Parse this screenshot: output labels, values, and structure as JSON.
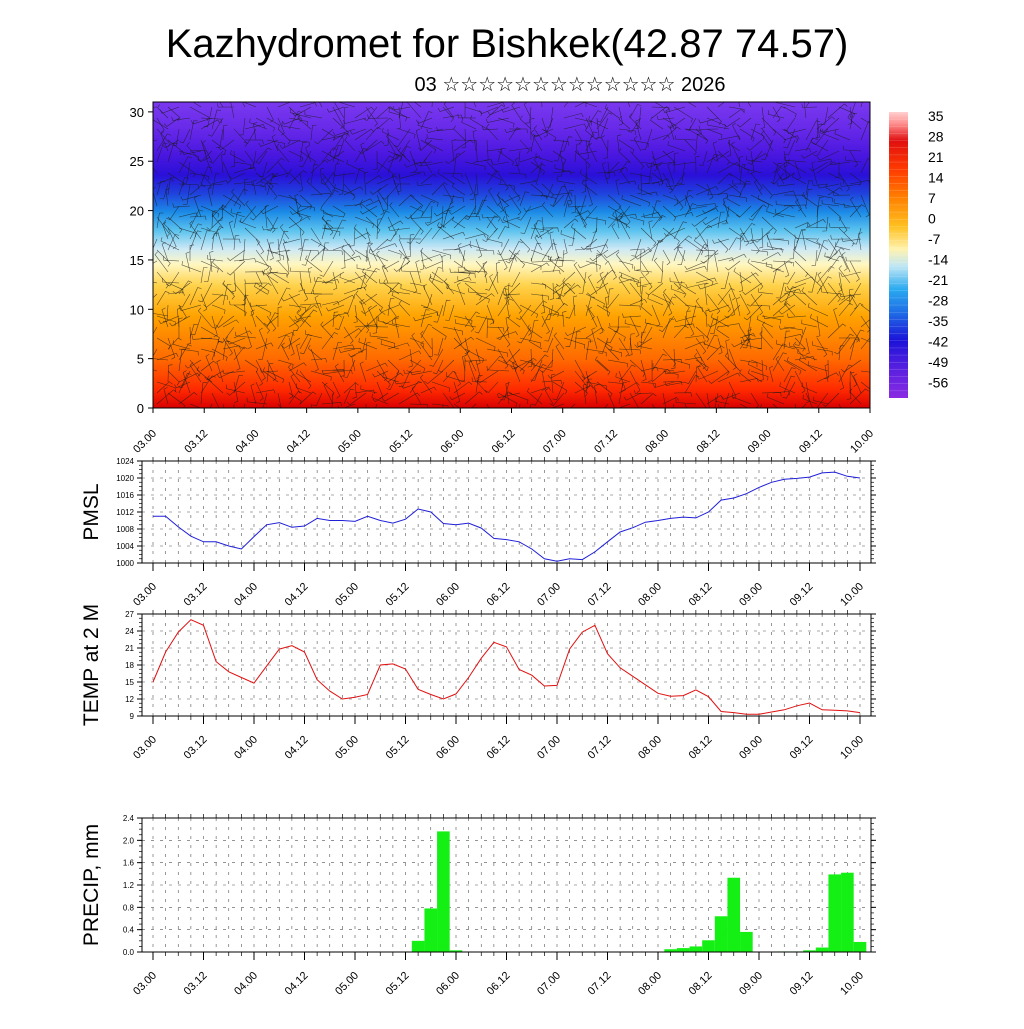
{
  "title": "Kazhydromet for Bishkek(42.87 74.57)",
  "subtitle": "03 ☆☆☆☆☆☆☆☆☆☆☆☆☆ 2026",
  "chart_data": [
    {
      "type": "heatmap",
      "name": "temperature-height-section",
      "x_ticks": [
        "03.00",
        "03.12",
        "04.00",
        "04.12",
        "05.00",
        "05.12",
        "06.00",
        "06.12",
        "07.00",
        "07.12",
        "08.00",
        "08.12",
        "09.00",
        "09.12",
        "10.00"
      ],
      "y_ticks": [
        "0",
        "5",
        "10",
        "15",
        "20",
        "25",
        "30"
      ],
      "ylim": [
        0,
        31
      ],
      "colorbar_labels": [
        "35",
        "28",
        "21",
        "14",
        "7",
        "0",
        "-7",
        "-14",
        "-21",
        "-28",
        "-35",
        "-42",
        "-49",
        "-56"
      ],
      "colorbar_range": [
        -63,
        42
      ],
      "wind_barbs": true
    },
    {
      "type": "line",
      "name": "pmsl",
      "ylabel": "PMSL",
      "ylim": [
        1000,
        1024
      ],
      "y_ticks": [
        "1000",
        "1004",
        "1008",
        "1012",
        "1016",
        "1020",
        "1024"
      ],
      "x_ticks": [
        "03.00",
        "03.12",
        "04.00",
        "04.12",
        "05.00",
        "05.12",
        "06.00",
        "06.12",
        "07.00",
        "07.12",
        "08.00",
        "08.12",
        "09.00",
        "09.12",
        "10.00"
      ],
      "color": "#1f1fd8",
      "x": [
        0,
        1,
        2,
        3,
        4,
        5,
        6,
        7,
        8,
        9,
        10,
        11,
        12,
        13,
        14,
        15,
        16,
        17,
        18,
        19,
        20,
        21,
        22,
        23,
        24,
        25,
        26,
        27,
        28,
        29,
        30,
        31,
        32,
        33,
        34,
        35,
        36,
        37,
        38,
        39,
        40,
        41,
        42,
        43,
        44,
        45,
        46,
        47,
        48,
        49,
        50,
        51,
        52,
        53,
        54,
        55,
        56
      ],
      "values": [
        1011,
        1011,
        1008.5,
        1006.3,
        1005,
        1005,
        1004,
        1003.3,
        1006.2,
        1009,
        1009.5,
        1008.4,
        1008.7,
        1010.5,
        1010,
        1010,
        1009.8,
        1011,
        1010,
        1009.4,
        1010.3,
        1012.7,
        1012,
        1009.3,
        1009,
        1009.4,
        1008.2,
        1005.8,
        1005.5,
        1005,
        1003.3,
        1001,
        1000.4,
        1001,
        1000.8,
        1002.6,
        1005,
        1007.3,
        1008.3,
        1009.6,
        1010,
        1010.5,
        1010.8,
        1010.6,
        1012,
        1014.8,
        1015.3,
        1016.3,
        1017.8,
        1019,
        1019.7,
        1019.9,
        1020.2,
        1021.2,
        1021.4,
        1020.4,
        1020
      ]
    },
    {
      "type": "line",
      "name": "temp-2m",
      "ylabel": "TEMP at 2 M",
      "ylim": [
        9,
        27
      ],
      "y_ticks": [
        "9",
        "12",
        "15",
        "18",
        "21",
        "24",
        "27"
      ],
      "x_ticks": [
        "03.00",
        "03.12",
        "04.00",
        "04.12",
        "05.00",
        "05.12",
        "06.00",
        "06.12",
        "07.00",
        "07.12",
        "08.00",
        "08.12",
        "09.00",
        "09.12",
        "10.00"
      ],
      "color": "#e01010",
      "x": [
        0,
        1,
        2,
        3,
        4,
        5,
        6,
        7,
        8,
        9,
        10,
        11,
        12,
        13,
        14,
        15,
        16,
        17,
        18,
        19,
        20,
        21,
        22,
        23,
        24,
        25,
        26,
        27,
        28,
        29,
        30,
        31,
        32,
        33,
        34,
        35,
        36,
        37,
        38,
        39,
        40,
        41,
        42,
        43,
        44,
        45,
        46,
        47,
        48,
        49,
        50,
        51,
        52,
        53,
        54,
        55,
        56
      ],
      "values": [
        15,
        20.3,
        23.8,
        26,
        25,
        18.6,
        16.8,
        15.8,
        14.8,
        17.8,
        20.8,
        21.4,
        20.3,
        15.4,
        13.4,
        12,
        12.3,
        12.8,
        18,
        18.2,
        17.3,
        13.7,
        12.8,
        12,
        12.9,
        15.8,
        19.2,
        22,
        21.2,
        17.2,
        16.2,
        14.3,
        14.4,
        20.8,
        23.8,
        25,
        20,
        17.5,
        16,
        14.5,
        13,
        12.5,
        12.6,
        13.6,
        12.4,
        9.8,
        9.6,
        9.3,
        9.3,
        9.7,
        10.1,
        10.8,
        11.3,
        10.1,
        10,
        9.9,
        9.6
      ]
    },
    {
      "type": "bar",
      "name": "precip",
      "ylabel": "PRECIP, mm",
      "ylim": [
        0,
        2.4
      ],
      "y_ticks": [
        "0.0",
        "0.4",
        "0.8",
        "1.2",
        "1.6",
        "2.0",
        "2.4"
      ],
      "x_ticks": [
        "03.00",
        "03.12",
        "04.00",
        "04.12",
        "05.00",
        "05.12",
        "06.00",
        "06.12",
        "07.00",
        "07.12",
        "08.00",
        "08.12",
        "09.00",
        "09.12",
        "10.00"
      ],
      "color": "#14f014",
      "x": [
        0,
        1,
        2,
        3,
        4,
        5,
        6,
        7,
        8,
        9,
        10,
        11,
        12,
        13,
        14,
        15,
        16,
        17,
        18,
        19,
        20,
        21,
        22,
        23,
        24,
        25,
        26,
        27,
        28,
        29,
        30,
        31,
        32,
        33,
        34,
        35,
        36,
        37,
        38,
        39,
        40,
        41,
        42,
        43,
        44,
        45,
        46,
        47,
        48,
        49,
        50,
        51,
        52,
        53,
        54,
        55,
        56
      ],
      "values": [
        0,
        0,
        0,
        0,
        0,
        0,
        0,
        0,
        0,
        0,
        0,
        0,
        0,
        0,
        0,
        0,
        0,
        0,
        0,
        0,
        0,
        0.2,
        0.78,
        2.16,
        0.03,
        0,
        0,
        0,
        0,
        0,
        0,
        0,
        0,
        0,
        0,
        0,
        0,
        0,
        0,
        0,
        0,
        0.05,
        0.07,
        0.1,
        0.21,
        0.64,
        1.33,
        0.36,
        0,
        0,
        0.01,
        0.01,
        0.03,
        0.08,
        1.39,
        1.42,
        0.18
      ]
    }
  ]
}
